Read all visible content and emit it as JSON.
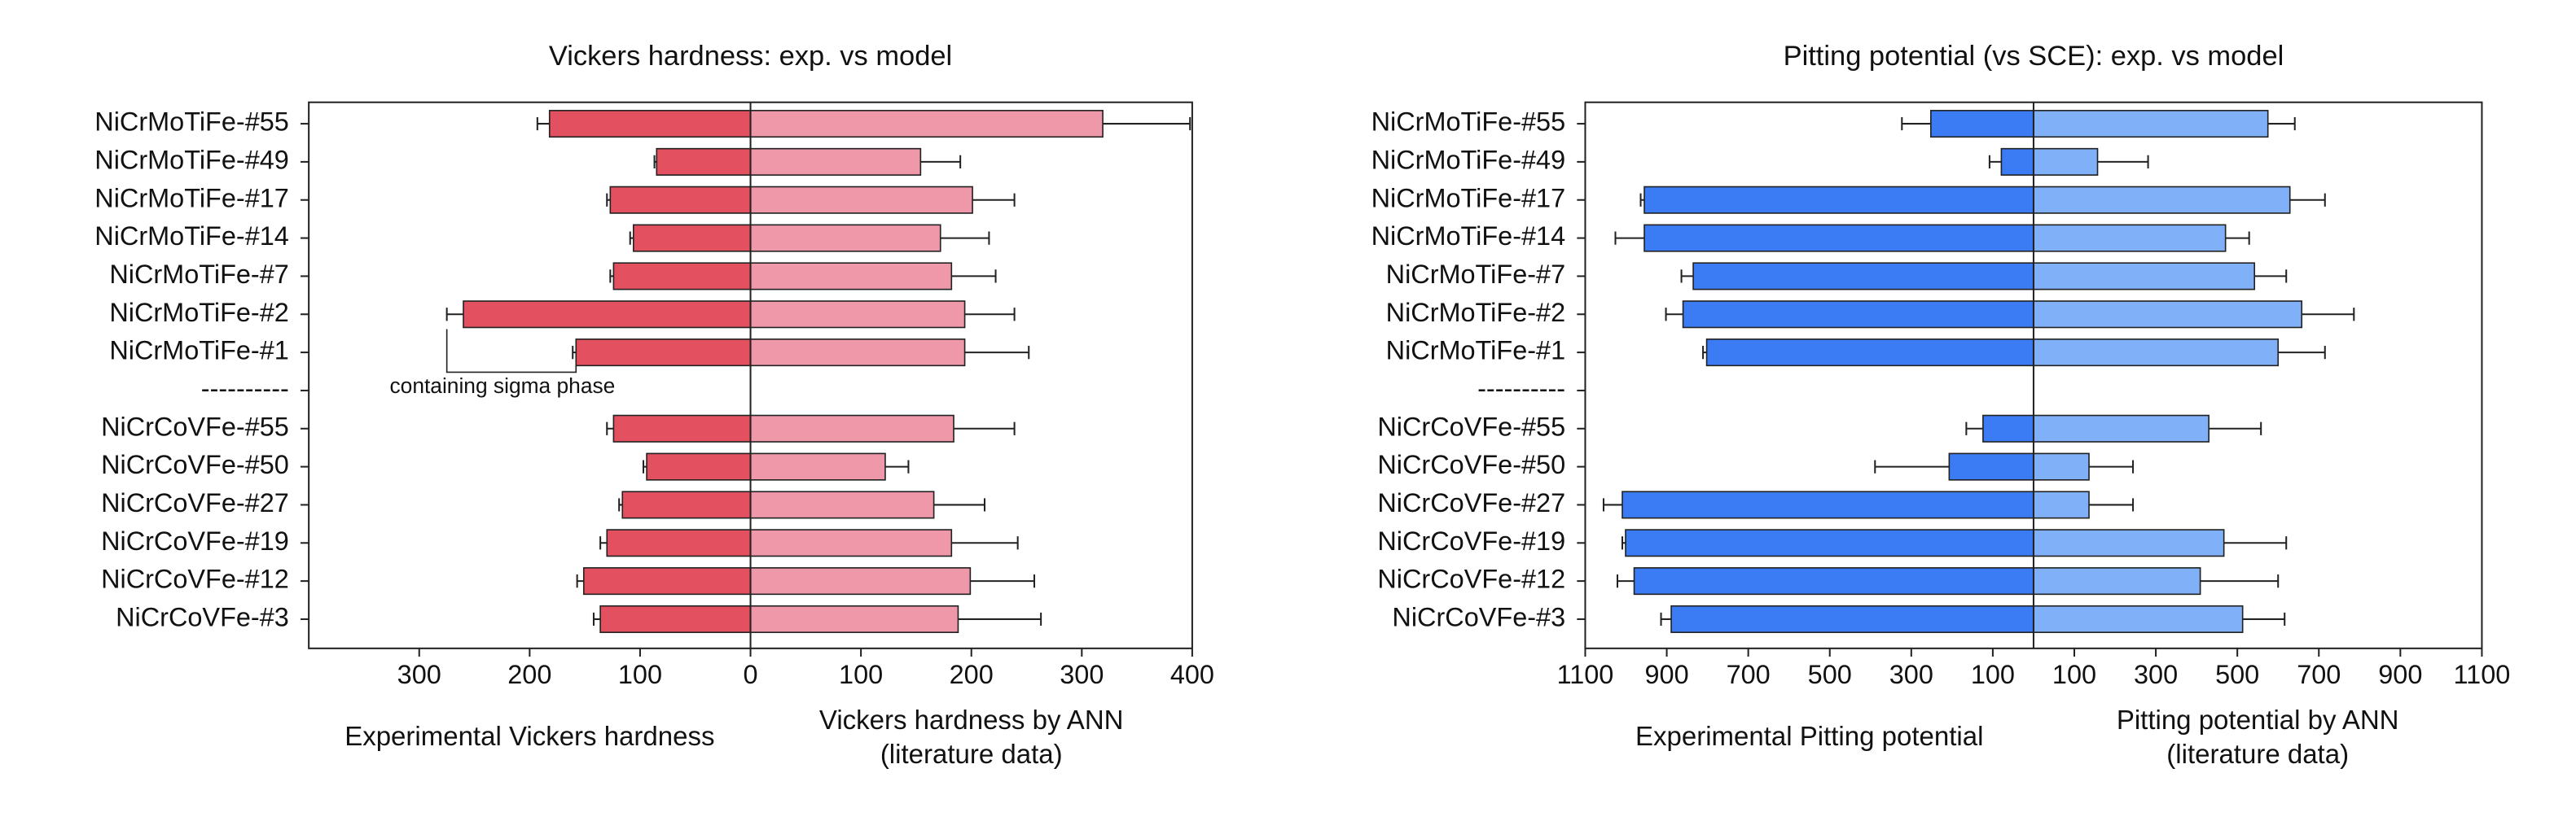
{
  "chart_data": [
    {
      "type": "diverging-bar",
      "title": "Vickers hardness: exp. vs model",
      "categories": [
        "NiCrMoTiFe-#55",
        "NiCrMoTiFe-#49",
        "NiCrMoTiFe-#17",
        "NiCrMoTiFe-#14",
        "NiCrMoTiFe-#7",
        "NiCrMoTiFe-#2",
        "NiCrMoTiFe-#1",
        "----------",
        "NiCrCoVFe-#55",
        "NiCrCoVFe-#50",
        "NiCrCoVFe-#27",
        "NiCrCoVFe-#19",
        "NiCrCoVFe-#12",
        "NiCrCoVFe-#3"
      ],
      "left_axis": {
        "xlim": [
          0,
          400
        ],
        "xticks": [
          300,
          200,
          100
        ]
      },
      "right_axis": {
        "xlim": [
          0,
          400
        ],
        "xticks": [
          0,
          100,
          200,
          300,
          400
        ]
      },
      "series": [
        {
          "name": "Experimental Vickers hardness",
          "side": "left",
          "color": "#e3505f",
          "values": [
            182,
            85,
            127,
            106,
            124,
            260,
            158,
            null,
            124,
            94,
            116,
            130,
            151,
            136
          ],
          "errors": [
            11,
            2,
            3,
            3,
            3,
            15,
            3,
            null,
            6,
            3,
            3,
            6,
            6,
            6
          ]
        },
        {
          "name": "Vickers hardness by ANN\n(literature data)",
          "side": "right",
          "color": "#ee98aa",
          "values": [
            319,
            154,
            201,
            172,
            182,
            194,
            194,
            null,
            184,
            122,
            166,
            182,
            199,
            188
          ],
          "errors": [
            79,
            36,
            38,
            44,
            40,
            45,
            58,
            null,
            55,
            21,
            46,
            60,
            58,
            75
          ]
        }
      ],
      "annotation": "containing sigma phase"
    },
    {
      "type": "diverging-bar",
      "title": "Pitting potential (vs SCE): exp. vs model",
      "categories": [
        "NiCrMoTiFe-#55",
        "NiCrMoTiFe-#49",
        "NiCrMoTiFe-#17",
        "NiCrMoTiFe-#14",
        "NiCrMoTiFe-#7",
        "NiCrMoTiFe-#2",
        "NiCrMoTiFe-#1",
        "----------",
        "NiCrCoVFe-#55",
        "NiCrCoVFe-#50",
        "NiCrCoVFe-#27",
        "NiCrCoVFe-#19",
        "NiCrCoVFe-#12",
        "NiCrCoVFe-#3"
      ],
      "left_axis": {
        "xlim": [
          0,
          1100
        ],
        "xticks": [
          1100,
          900,
          700,
          500,
          300,
          100
        ]
      },
      "right_axis": {
        "xlim": [
          0,
          1100
        ],
        "xticks": [
          100,
          300,
          500,
          700,
          900,
          1100
        ]
      },
      "series": [
        {
          "name": "Experimental Pitting potential",
          "side": "left",
          "color": "#3b7cf4",
          "values": [
            252,
            79,
            955,
            955,
            835,
            860,
            802,
            null,
            124,
            207,
            1009,
            1001,
            980,
            889
          ],
          "errors": [
            71,
            29,
            9,
            71,
            29,
            42,
            9,
            null,
            41,
            182,
            46,
            8,
            41,
            25
          ]
        },
        {
          "name": "Pitting potential by ANN\n(literature data)",
          "side": "right",
          "color": "#80b0f7",
          "values": [
            575,
            157,
            629,
            471,
            542,
            658,
            600,
            null,
            430,
            136,
            136,
            467,
            409,
            513
          ],
          "errors": [
            66,
            124,
            86,
            58,
            78,
            128,
            115,
            null,
            128,
            108,
            108,
            153,
            191,
            103
          ]
        }
      ]
    }
  ]
}
